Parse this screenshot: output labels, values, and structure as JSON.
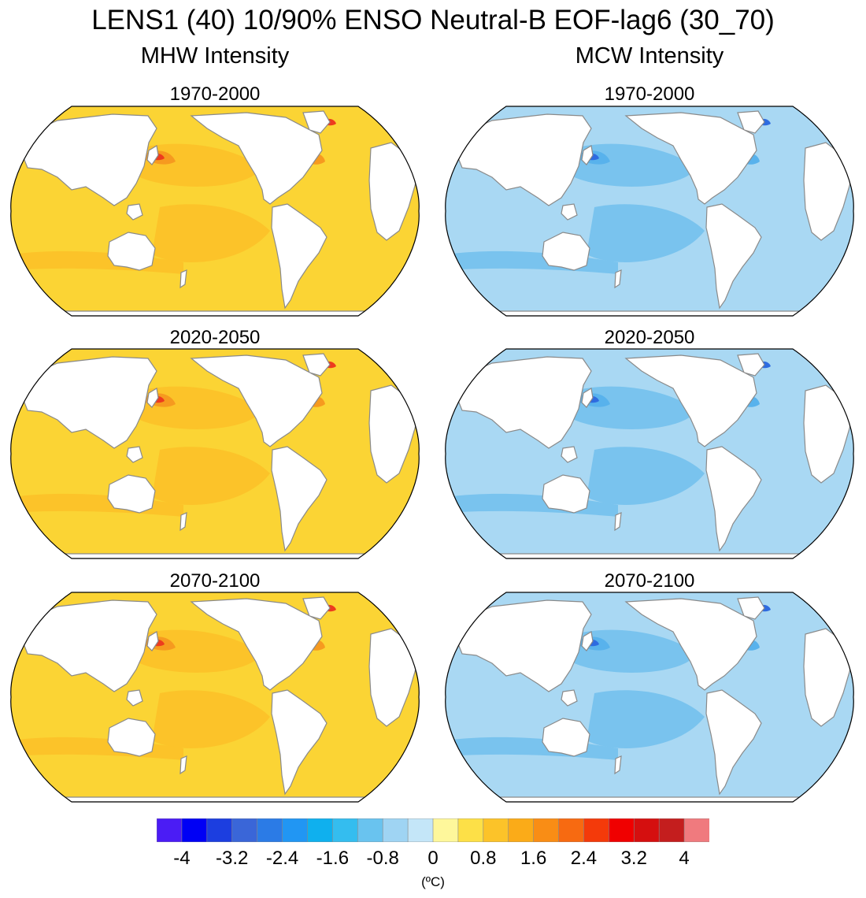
{
  "title": "LENS1 (40) 10/90% ENSO Neutral-B EOF-lag6 (30_70)",
  "columns": [
    {
      "id": "mhw",
      "title": "MHW Intensity"
    },
    {
      "id": "mcw",
      "title": "MCW Intensity"
    }
  ],
  "panels": [
    {
      "column": "mhw",
      "period": "1970-2000",
      "base_color": "#fbd434",
      "secondary_color": "#fcc329",
      "hot_color": "#f69a1f",
      "extreme_color": "#ed3b1e"
    },
    {
      "column": "mcw",
      "period": "1970-2000",
      "base_color": "#a9d8f3",
      "secondary_color": "#79c3ee",
      "hot_color": "#58b2ec",
      "extreme_color": "#2e6be0"
    },
    {
      "column": "mhw",
      "period": "2020-2050",
      "base_color": "#fbd434",
      "secondary_color": "#fcc329",
      "hot_color": "#f69a1f",
      "extreme_color": "#ed3b1e"
    },
    {
      "column": "mcw",
      "period": "2020-2050",
      "base_color": "#a9d8f3",
      "secondary_color": "#79c3ee",
      "hot_color": "#58b2ec",
      "extreme_color": "#2e6be0"
    },
    {
      "column": "mhw",
      "period": "2070-2100",
      "base_color": "#fbd434",
      "secondary_color": "#fcc329",
      "hot_color": "#f69a1f",
      "extreme_color": "#ed3b1e"
    },
    {
      "column": "mcw",
      "period": "2070-2100",
      "base_color": "#a9d8f3",
      "secondary_color": "#79c3ee",
      "hot_color": "#58b2ec",
      "extreme_color": "#2e6be0"
    }
  ],
  "colorbar": {
    "colors": [
      "#4b1cf5",
      "#0000f5",
      "#1c3ee0",
      "#3a66d8",
      "#2b7be6",
      "#2196f3",
      "#0fb0ee",
      "#34bdef",
      "#69c3ef",
      "#9fd4f3",
      "#c4e6f8",
      "#fef79b",
      "#fde047",
      "#fcc329",
      "#fbab18",
      "#f98d15",
      "#f76a11",
      "#f43a0a",
      "#f00000",
      "#d50f0f",
      "#c41e1e",
      "#f07a7e"
    ],
    "ticks": [
      "-4",
      "-3.2",
      "-2.4",
      "-1.6",
      "-0.8",
      "0",
      "0.8",
      "1.6",
      "2.4",
      "3.2",
      "4"
    ],
    "units": "(ºC)"
  }
}
